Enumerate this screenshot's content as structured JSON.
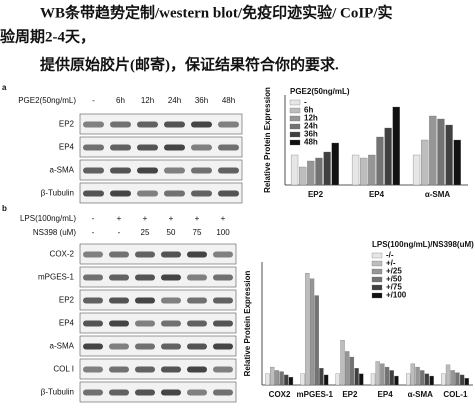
{
  "header": {
    "lines": [
      "WB条带趋势定制/western blot/免疫印迹实验/ CoIP/实",
      "验周期2-4天，",
      "提供原始胶片(邮寄)，保证结果符合你的要求."
    ]
  },
  "blot_a": {
    "label": "a",
    "condition": "PGE2(50ng/mL)",
    "lanes": [
      "-",
      "6h",
      "12h",
      "24h",
      "36h",
      "48h"
    ],
    "rows": [
      "EP2",
      "EP4",
      "a-SMA",
      "β-Tubulin"
    ]
  },
  "blot_b": {
    "label": "b",
    "conditions": [
      {
        "name": "LPS(100ng/mL)",
        "lanes": [
          "-",
          "+",
          "+",
          "+",
          "+",
          "+"
        ]
      },
      {
        "name": "NS398 (uM)",
        "lanes": [
          "-",
          "-",
          "25",
          "50",
          "75",
          "100"
        ]
      }
    ],
    "rows": [
      "COX-2",
      "mPGES-1",
      "EP2",
      "EP4",
      "a-SMA",
      "COL I",
      "β-Tubulin"
    ]
  },
  "chart_data": [
    {
      "type": "bar",
      "ylabel": "Relative Protein Expression",
      "legend_title": "PGE2(50ng/mL)",
      "categories": [
        "EP2",
        "EP4",
        "α-SMA"
      ],
      "ylim": [
        0,
        3
      ],
      "series": [
        {
          "name": "-",
          "color": "#e6e6e6",
          "values": [
            1,
            1,
            1
          ]
        },
        {
          "name": "6h",
          "color": "#bdbdbd",
          "values": [
            0.6,
            0.9,
            1.5
          ]
        },
        {
          "name": "12h",
          "color": "#969696",
          "values": [
            0.8,
            1,
            2.3
          ]
        },
        {
          "name": "24h",
          "color": "#737373",
          "values": [
            0.9,
            1.6,
            2.2
          ]
        },
        {
          "name": "36h",
          "color": "#404040",
          "values": [
            1.1,
            1.9,
            2
          ]
        },
        {
          "name": "48h",
          "color": "#111111",
          "values": [
            1.4,
            2.6,
            1.5
          ]
        }
      ]
    },
    {
      "type": "bar",
      "ylabel": "Relative Protein Expression",
      "legend_title": "LPS(100ng/mL)/NS398(uM)",
      "categories": [
        "COX2",
        "mPGES-1",
        "EP2",
        "EP4",
        "α-SMA",
        "COL-1"
      ],
      "ylim": [
        0,
        11
      ],
      "series": [
        {
          "name": "-/-",
          "color": "#e6e6e6",
          "values": [
            1,
            1,
            1,
            1,
            1,
            1
          ]
        },
        {
          "name": "+/-",
          "color": "#bdbdbd",
          "values": [
            1.6,
            10,
            4,
            2.1,
            1.9,
            1.8
          ]
        },
        {
          "name": "+/25",
          "color": "#969696",
          "values": [
            1.3,
            9.5,
            3,
            1.9,
            1.6,
            1.3
          ]
        },
        {
          "name": "+/50",
          "color": "#737373",
          "values": [
            1.2,
            8,
            2.5,
            1.6,
            1.3,
            1.1
          ]
        },
        {
          "name": "+/75",
          "color": "#404040",
          "values": [
            0.9,
            1.5,
            1.5,
            1.3,
            1,
            0.9
          ]
        },
        {
          "name": "+/100",
          "color": "#111111",
          "values": [
            0.7,
            0.9,
            1,
            0.8,
            0.8,
            0.6
          ]
        }
      ]
    }
  ]
}
